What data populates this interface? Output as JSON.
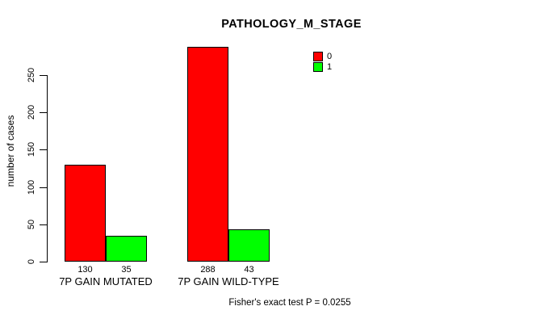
{
  "chart_data": {
    "type": "bar",
    "title": "PATHOLOGY_M_STAGE",
    "ylabel": "number of cases",
    "xlabel": "",
    "categories": [
      "7P GAIN MUTATED",
      "7P GAIN WILD-TYPE"
    ],
    "series": [
      {
        "name": "0",
        "color": "#ff0000",
        "values": [
          130,
          288
        ]
      },
      {
        "name": "1",
        "color": "#00ff00",
        "values": [
          35,
          43
        ]
      }
    ],
    "bar_value_labels": {
      "7P GAIN MUTATED": [
        130,
        35
      ],
      "7P GAIN WILD-TYPE": [
        288,
        43
      ]
    },
    "yticks": [
      0,
      50,
      100,
      150,
      200,
      250
    ],
    "ylim": [
      0,
      290
    ],
    "grid": false,
    "legend_position": "top-right",
    "legend_entries": [
      "0",
      "1"
    ],
    "annotation": "Fisher's exact test P = 0.0255"
  }
}
